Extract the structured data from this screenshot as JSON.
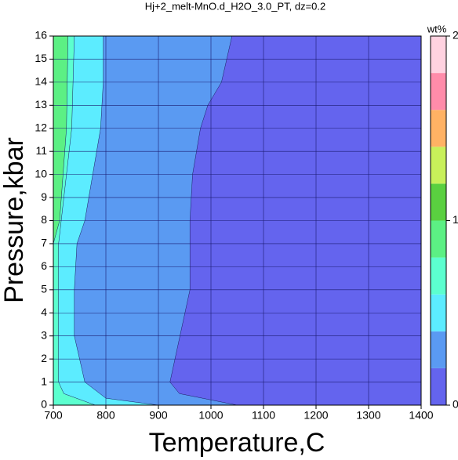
{
  "chart_data": {
    "type": "contour",
    "title": "Hj+2_melt-MnO.d_H2O_3.0_PT, dz=0.2",
    "x_label": "Temperature,C",
    "y_label": "Pressure,kbar",
    "xlim": [
      700,
      1400
    ],
    "xticks": [
      700,
      800,
      900,
      1000,
      1100,
      1200,
      1300,
      1400
    ],
    "ylim": [
      0,
      16
    ],
    "yticks": [
      0,
      1,
      2,
      3,
      4,
      5,
      6,
      7,
      8,
      9,
      10,
      11,
      12,
      13,
      14,
      15,
      16
    ],
    "grid": true,
    "background_color": "#6464ee",
    "contours": [
      {
        "level": 0.2,
        "color": "#5a9af2",
        "temperature": [
          1040,
          1020,
          994,
          980,
          965,
          960,
          960,
          922,
          940,
          1050
        ],
        "pressure": [
          16,
          14,
          13,
          12,
          10,
          8,
          5,
          1,
          0.5,
          0
        ]
      },
      {
        "level": 0.4,
        "color": "#5cecff",
        "temperature": [
          795,
          795,
          790,
          775,
          760,
          745,
          740,
          740,
          760,
          800,
          900
        ],
        "pressure": [
          16,
          14,
          12,
          10,
          8,
          7,
          5,
          3,
          1,
          0.3,
          0
        ]
      },
      {
        "level": 0.6,
        "color": "#5cffcf",
        "temperature": [
          740,
          735,
          725,
          715,
          710,
          710,
          720,
          780
        ],
        "pressure": [
          16,
          12,
          10,
          8,
          7,
          1,
          0.5,
          0
        ]
      },
      {
        "level": 0.8,
        "color": "#5cf084",
        "temperature": [
          728,
          725,
          712,
          700
        ],
        "pressure": [
          16,
          12,
          8,
          7
        ]
      }
    ],
    "colorbar": {
      "label": "wt%",
      "lim": [
        0,
        2
      ],
      "ticks": [
        0,
        1,
        2
      ],
      "colors": [
        "#6464ee",
        "#5a9af2",
        "#5cecff",
        "#5cffcf",
        "#5cf084",
        "#5ad040",
        "#c8f05a",
        "#ffb264",
        "#ff8caa",
        "#ffd2e0"
      ]
    }
  }
}
